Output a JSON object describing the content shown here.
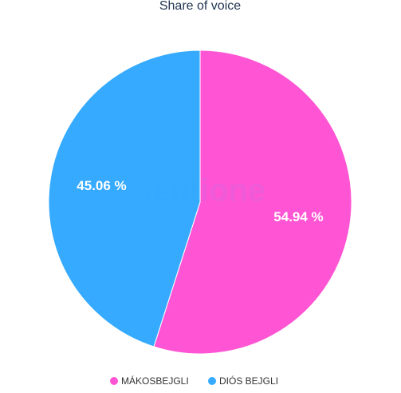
{
  "chart_data": {
    "type": "pie",
    "title": "Share of voice",
    "categories": [
      "MÁKOSBEJGLI",
      "DIÓS BEJGLI"
    ],
    "values": [
      54.94,
      45.06
    ],
    "value_labels": [
      "54.94 %",
      "45.06 %"
    ],
    "colors": [
      "#ff55d4",
      "#35aaff"
    ],
    "watermark": "sentione",
    "legend": "bottom"
  }
}
